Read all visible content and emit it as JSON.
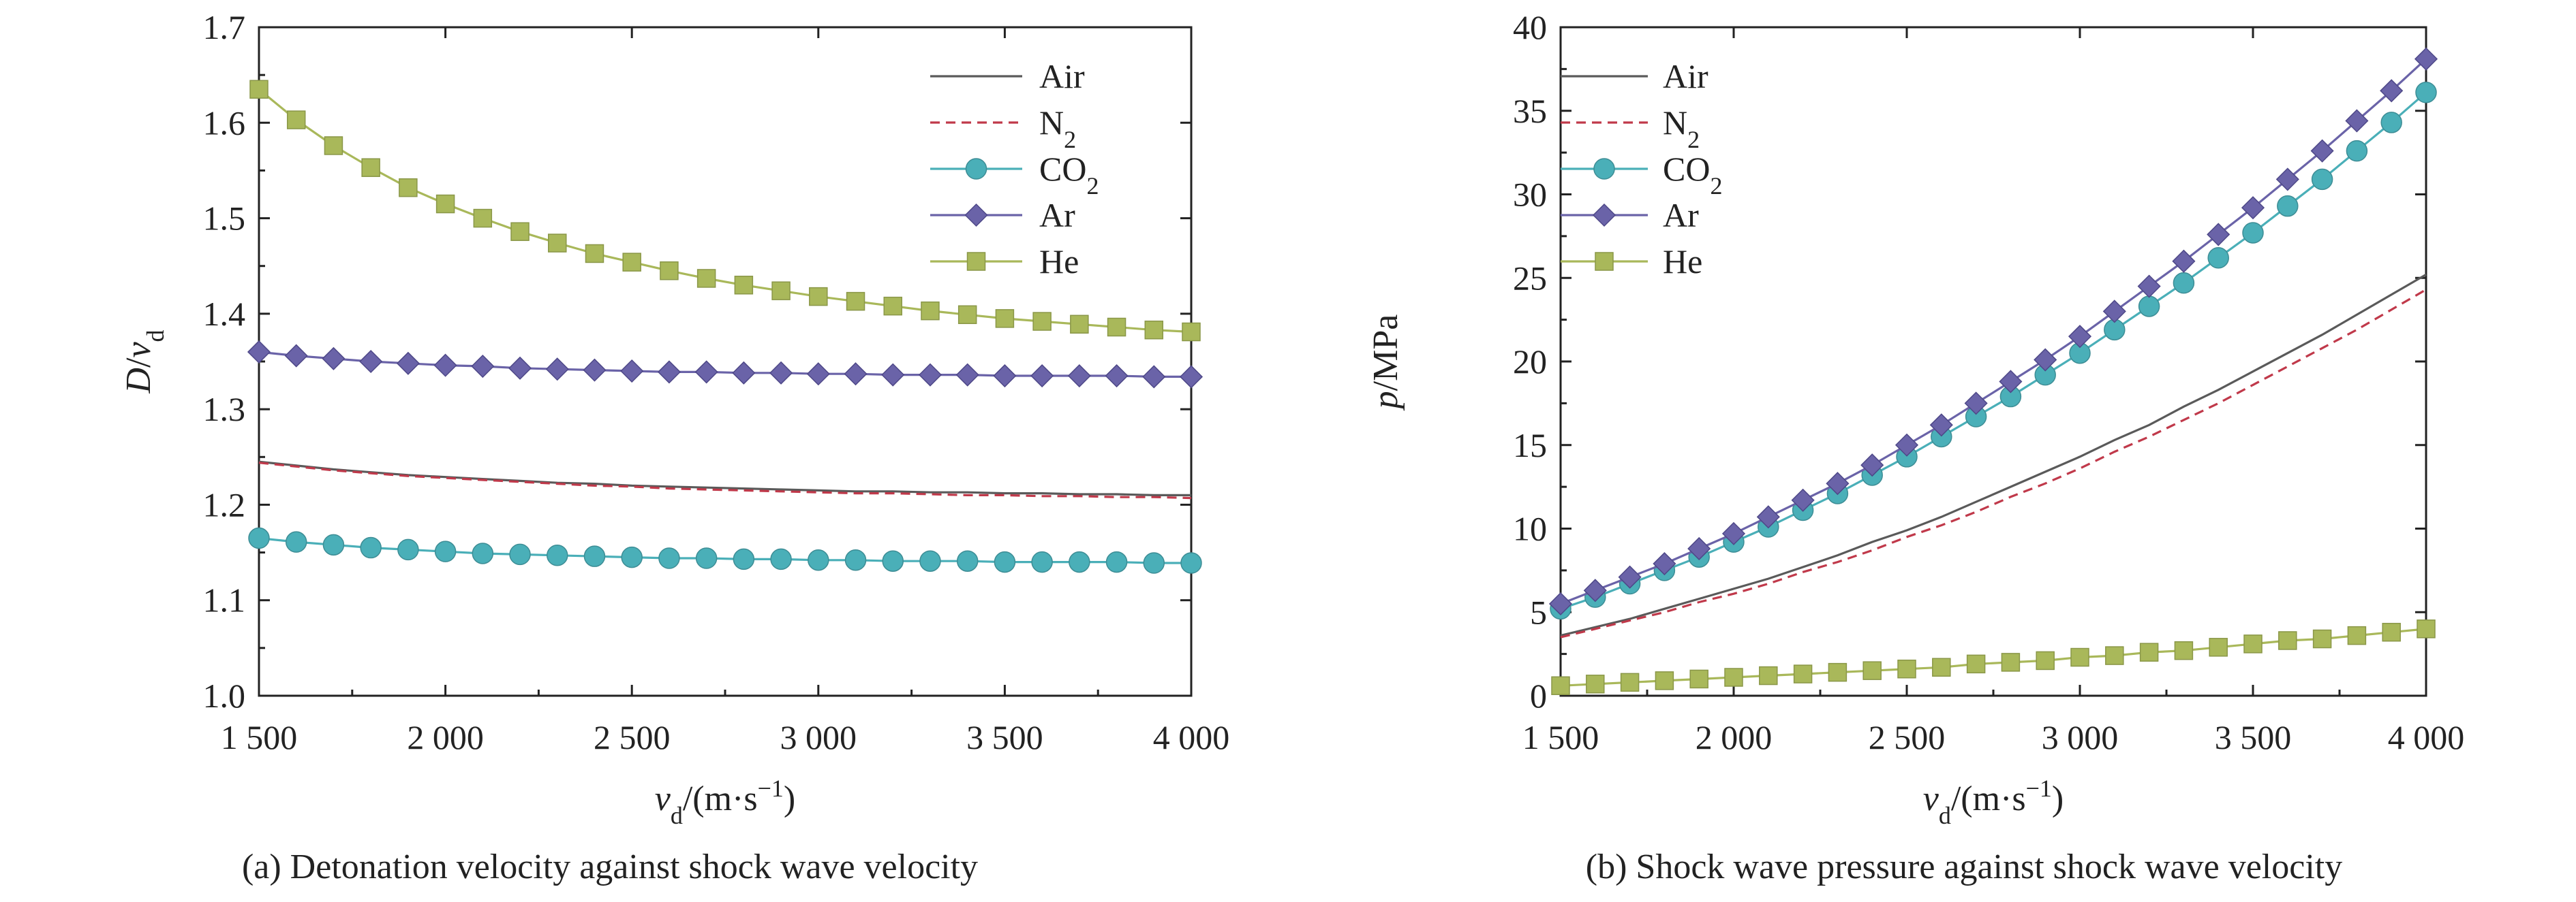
{
  "chart_data": [
    {
      "type": "line",
      "caption": "(a) Detonation velocity against shock wave velocity",
      "xlabel": {
        "main": "v",
        "sub": "d",
        "rest": "/(m·s",
        "sup": "−1",
        "end": ")"
      },
      "ylabel": {
        "main": "D/v",
        "sub": "d"
      },
      "xlim": [
        1500,
        4000
      ],
      "ylim": [
        1.0,
        1.7
      ],
      "x_ticks": [
        1500,
        2000,
        2500,
        3000,
        3500,
        4000
      ],
      "x_tick_labels": [
        "1 500",
        "2 000",
        "2 500",
        "3 000",
        "3 500",
        "4 000"
      ],
      "y_ticks": [
        1.0,
        1.1,
        1.2,
        1.3,
        1.4,
        1.5,
        1.6,
        1.7
      ],
      "y_tick_labels": [
        "1.0",
        "1.1",
        "1.2",
        "1.3",
        "1.4",
        "1.5",
        "1.6",
        "1.7"
      ],
      "legend_position": "top-right",
      "x": [
        1500,
        1600,
        1700,
        1800,
        1900,
        2000,
        2100,
        2200,
        2300,
        2400,
        2500,
        2600,
        2700,
        2800,
        2900,
        3000,
        3100,
        3200,
        3300,
        3400,
        3500,
        3600,
        3700,
        3800,
        3900,
        4000
      ],
      "series": [
        {
          "name": "Air",
          "legend": {
            "main": "Air",
            "sub": ""
          },
          "color": "#5a5a5a",
          "dash": "",
          "marker": "none",
          "values": [
            1.245,
            1.241,
            1.237,
            1.234,
            1.231,
            1.229,
            1.227,
            1.225,
            1.223,
            1.222,
            1.22,
            1.219,
            1.218,
            1.217,
            1.216,
            1.215,
            1.214,
            1.214,
            1.213,
            1.213,
            1.212,
            1.212,
            1.211,
            1.211,
            1.21,
            1.21
          ]
        },
        {
          "name": "N2",
          "legend": {
            "main": "N",
            "sub": "2"
          },
          "color": "#c0394a",
          "dash": "14,9",
          "marker": "none",
          "values": [
            1.244,
            1.24,
            1.236,
            1.233,
            1.23,
            1.228,
            1.226,
            1.224,
            1.222,
            1.22,
            1.219,
            1.217,
            1.216,
            1.215,
            1.214,
            1.213,
            1.212,
            1.212,
            1.211,
            1.21,
            1.21,
            1.209,
            1.209,
            1.208,
            1.208,
            1.207
          ]
        },
        {
          "name": "CO2",
          "legend": {
            "main": "CO",
            "sub": "2"
          },
          "color": "#4aafb8",
          "dash": "",
          "marker": "circle",
          "values": [
            1.165,
            1.161,
            1.158,
            1.155,
            1.153,
            1.151,
            1.149,
            1.148,
            1.147,
            1.146,
            1.145,
            1.144,
            1.144,
            1.143,
            1.143,
            1.142,
            1.142,
            1.141,
            1.141,
            1.141,
            1.14,
            1.14,
            1.14,
            1.14,
            1.139,
            1.139
          ]
        },
        {
          "name": "Ar",
          "legend": {
            "main": "Ar",
            "sub": ""
          },
          "color": "#6a63a8",
          "dash": "",
          "marker": "diamond",
          "values": [
            1.36,
            1.356,
            1.353,
            1.35,
            1.348,
            1.346,
            1.345,
            1.343,
            1.342,
            1.341,
            1.34,
            1.339,
            1.339,
            1.338,
            1.338,
            1.337,
            1.337,
            1.336,
            1.336,
            1.336,
            1.335,
            1.335,
            1.335,
            1.335,
            1.334,
            1.334
          ]
        },
        {
          "name": "He",
          "legend": {
            "main": "He",
            "sub": ""
          },
          "color": "#a9b85a",
          "dash": "",
          "marker": "square",
          "values": [
            1.635,
            1.603,
            1.576,
            1.553,
            1.532,
            1.515,
            1.5,
            1.486,
            1.474,
            1.463,
            1.454,
            1.445,
            1.437,
            1.43,
            1.424,
            1.418,
            1.413,
            1.408,
            1.403,
            1.399,
            1.395,
            1.392,
            1.389,
            1.386,
            1.383,
            1.381
          ]
        }
      ]
    },
    {
      "type": "line",
      "caption": "(b) Shock wave pressure against shock wave velocity",
      "xlabel": {
        "main": "v",
        "sub": "d",
        "rest": "/(m·s",
        "sup": "−1",
        "end": ")"
      },
      "ylabel": {
        "main": "p/MPa",
        "sub": ""
      },
      "xlim": [
        1500,
        4000
      ],
      "ylim": [
        0,
        40
      ],
      "x_ticks": [
        1500,
        2000,
        2500,
        3000,
        3500,
        4000
      ],
      "x_tick_labels": [
        "1 500",
        "2 000",
        "2 500",
        "3 000",
        "3 500",
        "4 000"
      ],
      "y_ticks": [
        0,
        5,
        10,
        15,
        20,
        25,
        30,
        35,
        40
      ],
      "y_tick_labels": [
        "0",
        "5",
        "10",
        "15",
        "20",
        "25",
        "30",
        "35",
        "40"
      ],
      "legend_position": "top-left",
      "x": [
        1500,
        1600,
        1700,
        1800,
        1900,
        2000,
        2100,
        2200,
        2300,
        2400,
        2500,
        2600,
        2700,
        2800,
        2900,
        3000,
        3100,
        3200,
        3300,
        3400,
        3500,
        3600,
        3700,
        3800,
        3900,
        4000
      ],
      "series": [
        {
          "name": "Air",
          "legend": {
            "main": "Air",
            "sub": ""
          },
          "color": "#5a5a5a",
          "dash": "",
          "marker": "none",
          "values": [
            3.6,
            4.1,
            4.6,
            5.2,
            5.8,
            6.4,
            7.0,
            7.7,
            8.4,
            9.2,
            9.9,
            10.7,
            11.6,
            12.5,
            13.4,
            14.3,
            15.3,
            16.2,
            17.3,
            18.3,
            19.4,
            20.5,
            21.6,
            22.8,
            24.0,
            25.2
          ]
        },
        {
          "name": "N2",
          "legend": {
            "main": "N",
            "sub": "2"
          },
          "color": "#c0394a",
          "dash": "14,9",
          "marker": "none",
          "values": [
            3.5,
            4.0,
            4.5,
            5.0,
            5.6,
            6.1,
            6.7,
            7.4,
            8.0,
            8.7,
            9.5,
            10.2,
            11.0,
            11.9,
            12.7,
            13.6,
            14.6,
            15.5,
            16.5,
            17.5,
            18.6,
            19.7,
            20.8,
            21.9,
            23.1,
            24.3
          ]
        },
        {
          "name": "CO2",
          "legend": {
            "main": "CO",
            "sub": "2"
          },
          "color": "#4aafb8",
          "dash": "",
          "marker": "circle",
          "values": [
            5.2,
            5.9,
            6.7,
            7.5,
            8.3,
            9.2,
            10.1,
            11.1,
            12.1,
            13.2,
            14.3,
            15.5,
            16.7,
            17.9,
            19.2,
            20.5,
            21.9,
            23.3,
            24.7,
            26.2,
            27.7,
            29.3,
            30.9,
            32.6,
            34.3,
            36.1
          ]
        },
        {
          "name": "Ar",
          "legend": {
            "main": "Ar",
            "sub": ""
          },
          "color": "#6a63a8",
          "dash": "",
          "marker": "diamond",
          "values": [
            5.5,
            6.3,
            7.1,
            7.9,
            8.8,
            9.7,
            10.7,
            11.7,
            12.7,
            13.8,
            15.0,
            16.2,
            17.5,
            18.8,
            20.1,
            21.5,
            23.0,
            24.5,
            26.0,
            27.6,
            29.2,
            30.9,
            32.6,
            34.4,
            36.2,
            38.1
          ]
        },
        {
          "name": "He",
          "legend": {
            "main": "He",
            "sub": ""
          },
          "color": "#a9b85a",
          "dash": "",
          "marker": "square",
          "values": [
            0.6,
            0.7,
            0.8,
            0.9,
            1.0,
            1.1,
            1.2,
            1.3,
            1.4,
            1.5,
            1.6,
            1.7,
            1.9,
            2.0,
            2.1,
            2.3,
            2.4,
            2.6,
            2.7,
            2.9,
            3.1,
            3.3,
            3.4,
            3.6,
            3.8,
            4.0
          ]
        }
      ]
    }
  ]
}
